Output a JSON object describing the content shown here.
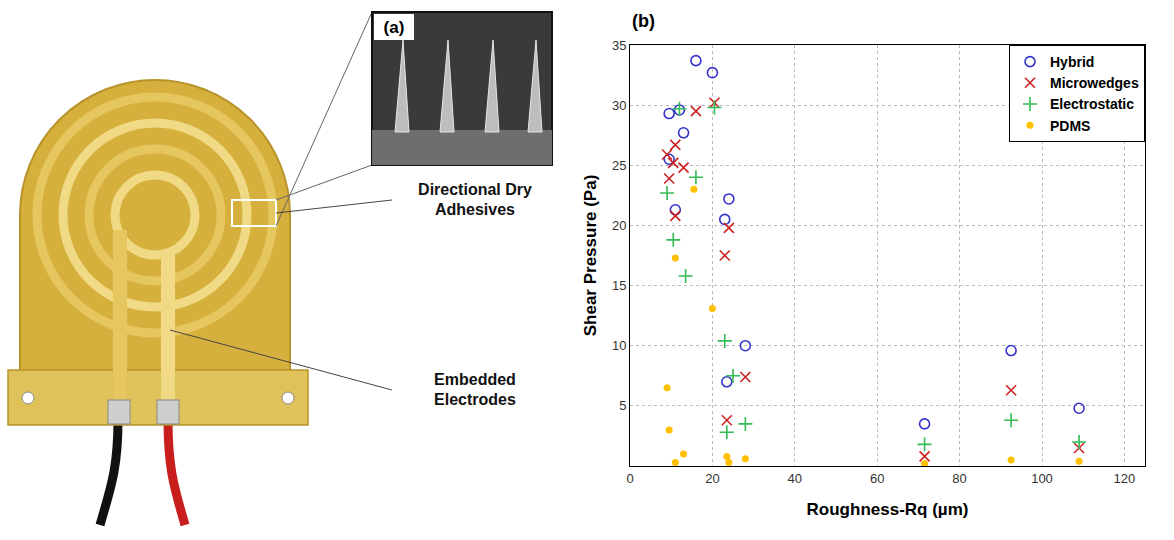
{
  "panel_a": {
    "label": "(a)",
    "callouts": [
      "Directional Dry Adhesives",
      "Embedded Electrodes"
    ]
  },
  "chart_data": {
    "type": "scatter",
    "annotations": [
      "(b)"
    ],
    "x_label": "Roughness-Rq (µm)",
    "y_label": "Shear Pressure (Pa)",
    "xlim": [
      0,
      125
    ],
    "ylim": [
      0,
      35
    ],
    "xticks": [
      0,
      20,
      40,
      60,
      80,
      100,
      120
    ],
    "yticks": [
      5,
      10,
      15,
      20,
      25,
      30,
      35
    ],
    "grid": true,
    "legend": "top right",
    "series": [
      {
        "name": "Hybrid",
        "color": "#3333cc",
        "marker": "circle-open",
        "x": [
          9.5,
          9.5,
          11,
          12,
          13,
          16,
          20,
          23,
          24,
          23.5,
          28,
          71.5,
          92.5,
          109
        ],
        "values": [
          29.3,
          25.5,
          21.3,
          29.6,
          27.7,
          33.7,
          32.7,
          20.5,
          22.2,
          7,
          10,
          3.5,
          9.6,
          4.8
        ]
      },
      {
        "name": "Microwedges",
        "color": "#cc2222",
        "marker": "x",
        "x": [
          9,
          9.5,
          10.5,
          11,
          11,
          13,
          16,
          20.5,
          23,
          24,
          23.5,
          28,
          71.5,
          92.5,
          109
        ],
        "values": [
          25.9,
          23.9,
          25.2,
          20.8,
          26.7,
          24.8,
          29.5,
          30.2,
          17.5,
          19.8,
          3.8,
          7.4,
          0.8,
          6.3,
          1.5
        ]
      },
      {
        "name": "Electrostatic",
        "color": "#33bb55",
        "marker": "cross",
        "x": [
          9,
          10.5,
          12,
          13.5,
          16,
          20.5,
          23,
          23.5,
          25,
          28,
          71.5,
          92.5,
          109
        ],
        "values": [
          22.7,
          18.8,
          29.7,
          15.8,
          24,
          29.8,
          10.4,
          2.8,
          7.5,
          3.5,
          1.8,
          3.8,
          2.0
        ]
      },
      {
        "name": "PDMS",
        "color": "#ffc000",
        "marker": "circle",
        "x": [
          9,
          9.5,
          11,
          11,
          13,
          15.5,
          20,
          23.5,
          24,
          28,
          71.5,
          92.5,
          109
        ],
        "values": [
          6.5,
          3,
          17.3,
          0.3,
          1,
          23,
          13.1,
          0.8,
          0.3,
          0.6,
          0.2,
          0.5,
          0.4
        ]
      }
    ]
  }
}
